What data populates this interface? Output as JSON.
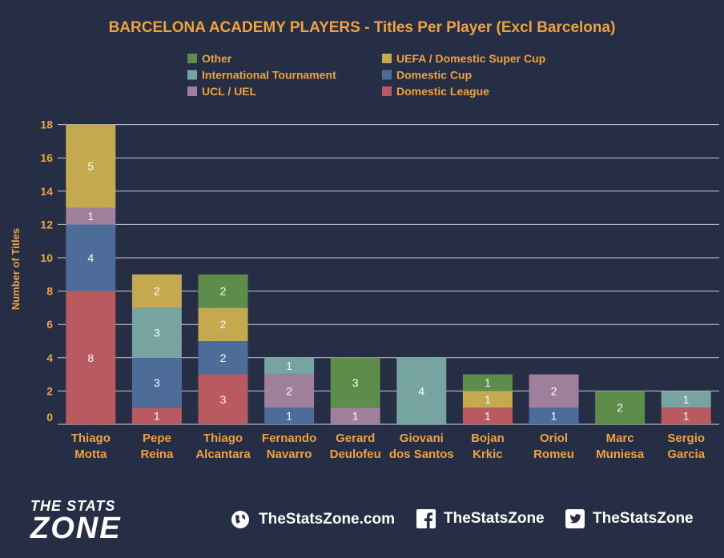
{
  "chart_data": {
    "type": "bar",
    "stacked": true,
    "title": "BARCELONA ACADEMY PLAYERS - Titles Per Player (Excl Barcelona)",
    "ylabel": "Number of Titles",
    "ylim": [
      0,
      18
    ],
    "yticks": [
      0,
      2,
      4,
      6,
      8,
      10,
      12,
      14,
      16,
      18
    ],
    "grid": true,
    "legend_position": "top",
    "categories": [
      [
        "Thiago",
        "Motta"
      ],
      [
        "Pepe",
        "Reina"
      ],
      [
        "Thiago",
        "Alcantara"
      ],
      [
        "Fernando",
        "Navarro"
      ],
      [
        "Gerard",
        "Deulofeu"
      ],
      [
        "Giovani",
        "dos Santos"
      ],
      [
        "Bojan",
        "Krkic"
      ],
      [
        "Oriol",
        "Romeu"
      ],
      [
        "Marc",
        "Muniesa"
      ],
      [
        "Sergio",
        "Garcia"
      ]
    ],
    "series": [
      {
        "name": "Domestic League",
        "color": "#b85a5f",
        "values": [
          8,
          1,
          3,
          0,
          0,
          0,
          1,
          0,
          0,
          1
        ]
      },
      {
        "name": "Domestic Cup",
        "color": "#4e6c99",
        "values": [
          4,
          3,
          2,
          1,
          0,
          0,
          0,
          1,
          0,
          0
        ]
      },
      {
        "name": "UCL / UEL",
        "color": "#9e7f9c",
        "values": [
          1,
          0,
          0,
          2,
          1,
          0,
          0,
          2,
          0,
          0
        ]
      },
      {
        "name": "International Tournament",
        "color": "#77a3a1",
        "values": [
          0,
          3,
          0,
          1,
          0,
          4,
          0,
          0,
          0,
          1
        ]
      },
      {
        "name": "UEFA / Domestic Super Cup",
        "color": "#c4a94f",
        "values": [
          5,
          2,
          2,
          0,
          0,
          0,
          1,
          0,
          0,
          0
        ]
      },
      {
        "name": "Other",
        "color": "#5e8c4b",
        "values": [
          0,
          0,
          2,
          0,
          3,
          0,
          1,
          0,
          2,
          0
        ]
      }
    ],
    "legend_order": [
      "Other",
      "UEFA / Domestic Super Cup",
      "International Tournament",
      "Domestic Cup",
      "UCL / UEL",
      "Domestic League"
    ]
  },
  "colors": {
    "background": "#252e45",
    "accent": "#f0a23c",
    "text": "#ffffff"
  },
  "footer": {
    "logo_line1": "THE STATS",
    "logo_line2": "ZONE",
    "website": "TheStatsZone.com",
    "facebook": "TheStatsZone",
    "twitter": "TheStatsZone",
    "icons": [
      "globe-icon",
      "facebook-icon",
      "twitter-icon"
    ]
  }
}
